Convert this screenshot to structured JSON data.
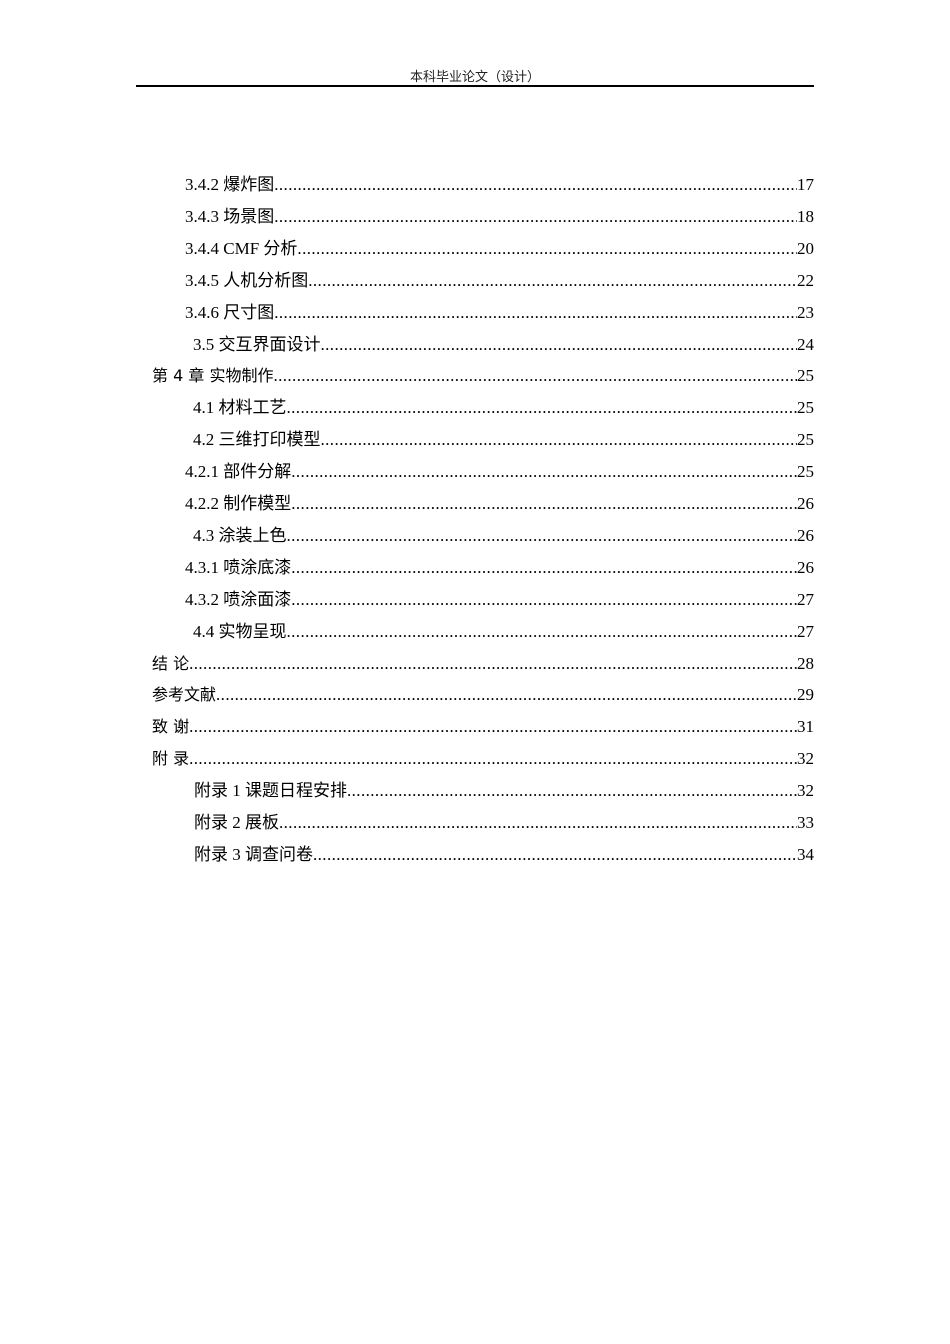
{
  "header": {
    "title": "本科毕业论文（设计）"
  },
  "toc": [
    {
      "label": "3.4.2 爆炸图",
      "page": "17",
      "level": 3
    },
    {
      "label": "3.4.3 场景图",
      "page": "18",
      "level": 3
    },
    {
      "label": "3.4.4 CMF 分析",
      "page": "20",
      "level": 3
    },
    {
      "label": "3.4.5 人机分析图",
      "page": "22",
      "level": 3
    },
    {
      "label": "3.4.6 尺寸图",
      "page": "23",
      "level": 3
    },
    {
      "label": "3.5 交互界面设计",
      "page": "24",
      "level": 2
    },
    {
      "label": "第 4 章  实物制作",
      "page": "25",
      "level": 1
    },
    {
      "label": "4.1 材料工艺",
      "page": "25",
      "level": 2
    },
    {
      "label": "4.2 三维打印模型",
      "page": "25",
      "level": 2
    },
    {
      "label": "4.2.1 部件分解",
      "page": "25",
      "level": 3
    },
    {
      "label": "4.2.2 制作模型",
      "page": "26",
      "level": 3
    },
    {
      "label": "4.3 涂装上色",
      "page": "26",
      "level": 2
    },
    {
      "label": "4.3.1 喷涂底漆",
      "page": "26",
      "level": 3
    },
    {
      "label": "4.3.2 喷涂面漆",
      "page": "27",
      "level": 3
    },
    {
      "label": "4.4  实物呈现",
      "page": "27",
      "level": 2
    },
    {
      "label": "结    论",
      "page": "28",
      "level": 1
    },
    {
      "label": "参考文献",
      "page": "29",
      "level": 1
    },
    {
      "label": "致    谢",
      "page": "31",
      "level": 1
    },
    {
      "label": "附    录",
      "page": "32",
      "level": 1
    },
    {
      "label": "附录 1 课题日程安排",
      "page": "32",
      "level": 4
    },
    {
      "label": "附录 2 展板",
      "page": "33",
      "level": 4
    },
    {
      "label": "附录 3  调查问卷",
      "page": "34",
      "level": 4
    }
  ]
}
